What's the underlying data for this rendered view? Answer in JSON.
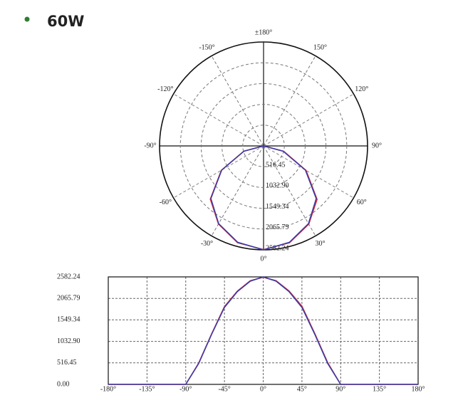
{
  "header": {
    "title": "60W"
  },
  "chart_data": [
    {
      "type": "polar",
      "x": [
        -180,
        -165,
        -150,
        -135,
        -120,
        -105,
        -90,
        -75,
        -60,
        -45,
        -30,
        -15,
        0,
        15,
        30,
        45,
        60,
        75,
        90,
        105,
        120,
        135,
        150,
        165,
        180
      ],
      "series": [
        {
          "color": "#e03030",
          "values": [
            0,
            0,
            0,
            0,
            0,
            0,
            0,
            510,
            1210,
            1870,
            2240,
            2490,
            2575,
            2490,
            2245,
            1880,
            1220,
            520,
            0,
            0,
            0,
            0,
            0,
            0,
            0
          ]
        },
        {
          "color": "#3a3aa8",
          "values": [
            0,
            0,
            0,
            0,
            0,
            0,
            0,
            500,
            1200,
            1850,
            2230,
            2480,
            2582,
            2480,
            2230,
            1850,
            1200,
            500,
            0,
            0,
            0,
            0,
            0,
            0,
            0
          ]
        }
      ],
      "rlim": [
        0,
        2582.24
      ],
      "rticks": [
        516.45,
        {
          "value": 1032.9,
          "label": "1032.90"
        },
        1549.34,
        2065.79,
        2582.24
      ],
      "thetaticks": [
        {
          "value": 0,
          "label": "0°"
        },
        {
          "value": 30,
          "label": "30°"
        },
        {
          "value": 60,
          "label": "60°"
        },
        {
          "value": 90,
          "label": "90°"
        },
        {
          "value": 120,
          "label": "120°"
        },
        {
          "value": 150,
          "label": "150°"
        },
        {
          "value": 180,
          "label": "±180°"
        },
        {
          "value": -150,
          "label": "-150°"
        },
        {
          "value": -120,
          "label": "-120°"
        },
        {
          "value": -90,
          "label": "-90°"
        },
        {
          "value": -60,
          "label": "-60°"
        },
        {
          "value": -30,
          "label": "-30°"
        }
      ],
      "grid": true
    },
    {
      "type": "line",
      "x": [
        -180,
        -165,
        -150,
        -135,
        -120,
        -105,
        -90,
        -75,
        -60,
        -45,
        -30,
        -15,
        0,
        15,
        30,
        45,
        60,
        75,
        90,
        105,
        120,
        135,
        150,
        165,
        180
      ],
      "series": [
        {
          "color": "#e03030",
          "values": [
            0,
            0,
            0,
            0,
            0,
            0,
            0,
            510,
            1210,
            1870,
            2240,
            2490,
            2575,
            2490,
            2245,
            1880,
            1220,
            520,
            0,
            0,
            0,
            0,
            0,
            0,
            0
          ]
        },
        {
          "color": "#3a3aa8",
          "values": [
            0,
            0,
            0,
            0,
            0,
            0,
            0,
            500,
            1200,
            1850,
            2230,
            2480,
            2582,
            2480,
            2230,
            1850,
            1200,
            500,
            0,
            0,
            0,
            0,
            0,
            0,
            0
          ]
        }
      ],
      "xlim": [
        -180,
        180
      ],
      "xticks": [
        {
          "value": -180,
          "label": "-180°"
        },
        {
          "value": -135,
          "label": "-135°"
        },
        {
          "value": -90,
          "label": "-90°"
        },
        {
          "value": -45,
          "label": "-45°"
        },
        {
          "value": 0,
          "label": "0°"
        },
        {
          "value": 45,
          "label": "45°"
        },
        {
          "value": 90,
          "label": "90°"
        },
        {
          "value": 135,
          "label": "135°"
        },
        {
          "value": 180,
          "label": "180°"
        }
      ],
      "ylim": [
        0,
        2582.24
      ],
      "yticks": [
        {
          "value": 0,
          "label": "0.00"
        },
        516.45,
        {
          "value": 1032.9,
          "label": "1032.90"
        },
        1549.34,
        2065.79,
        2582.24
      ],
      "grid": true
    }
  ]
}
